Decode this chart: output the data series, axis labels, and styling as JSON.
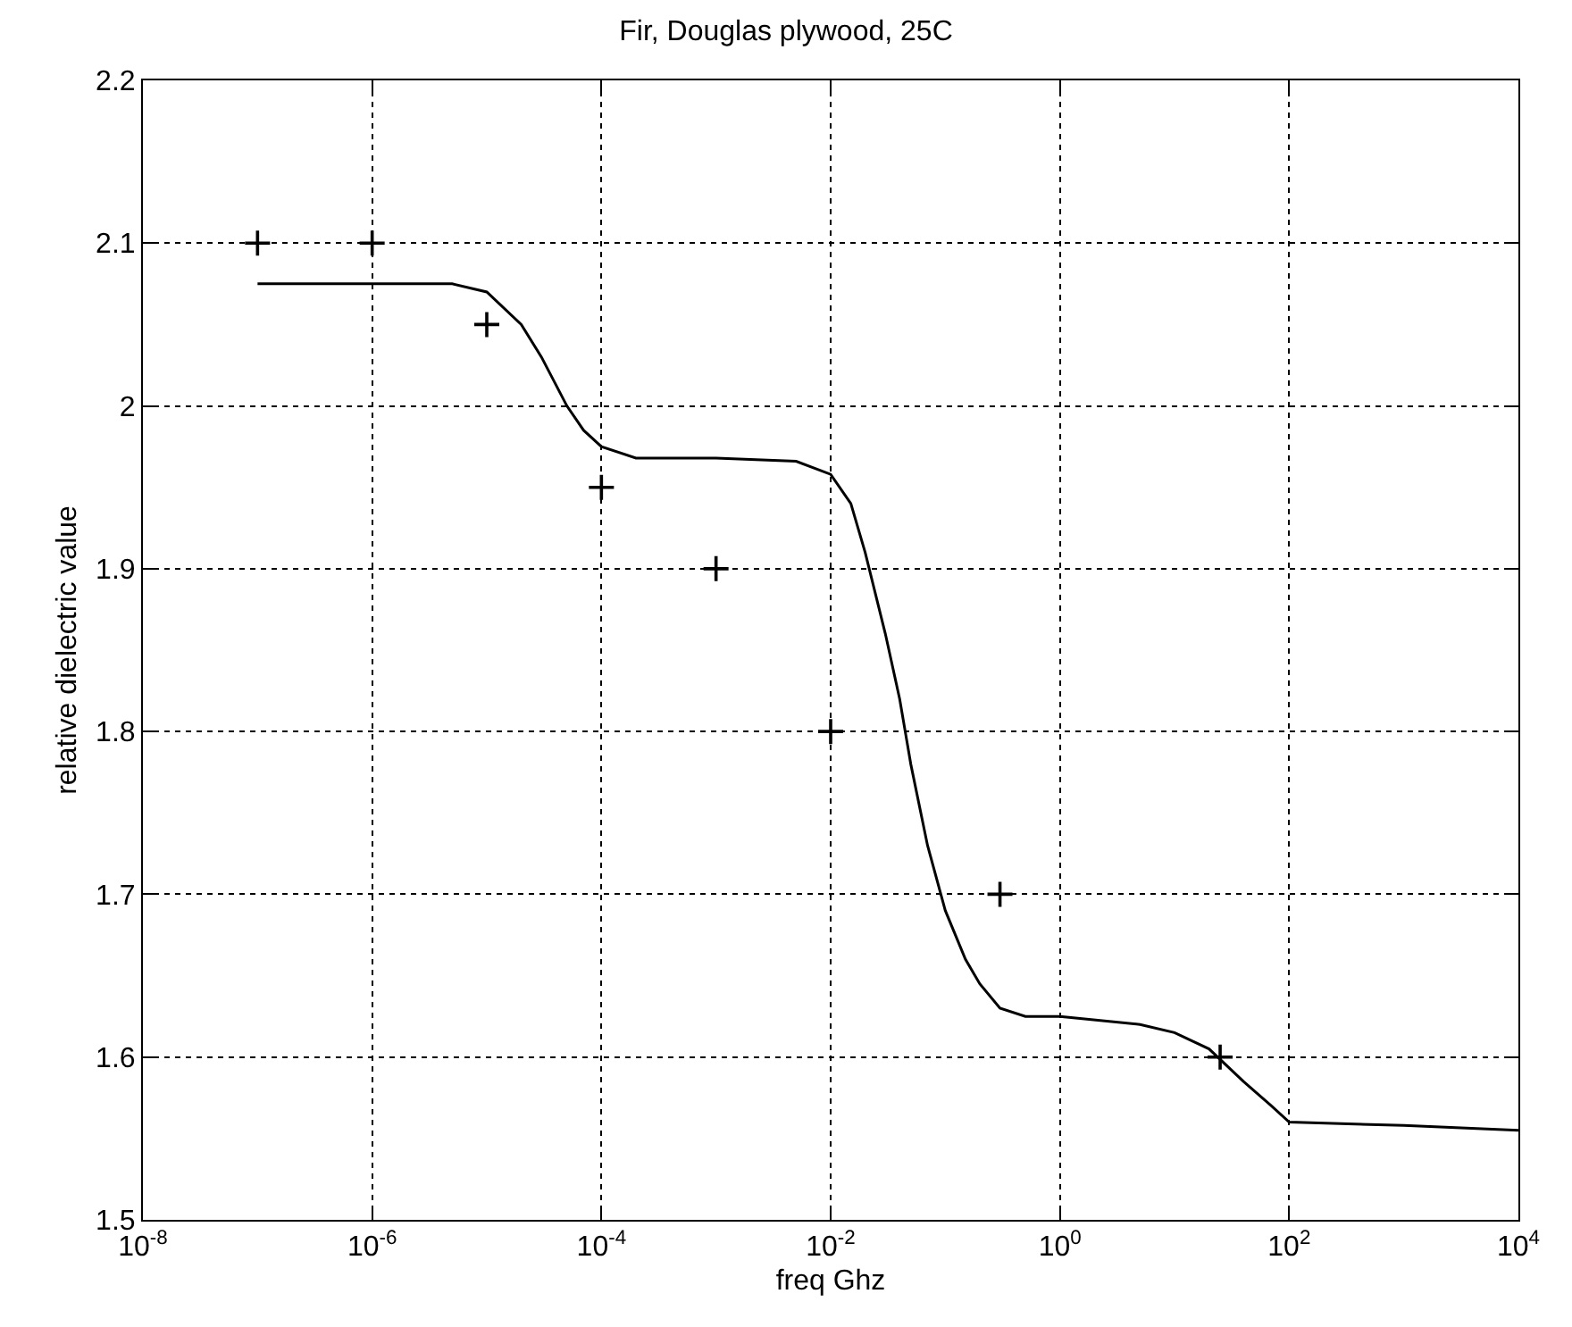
{
  "chart_data": {
    "type": "line",
    "title": "Fir, Douglas plywood, 25C",
    "xlabel": "freq Ghz",
    "ylabel": "relative dielectric value",
    "log": "x",
    "grid": true,
    "xlim": [
      1e-08,
      10000
    ],
    "ylim": [
      1.5,
      2.2
    ],
    "xticks": [
      {
        "value": 1e-08,
        "label": "10$^{-8}$"
      },
      {
        "value": 1e-06,
        "label": "10$^{-6}$"
      },
      {
        "value": 0.0001,
        "label": "10$^{-4}$"
      },
      {
        "value": 0.01,
        "label": "10$^{-2}$"
      },
      {
        "value": 1,
        "label": "10$^{0}$"
      },
      {
        "value": 100,
        "label": "10$^{2}$"
      },
      {
        "value": 10000,
        "label": "10$^{4}$"
      }
    ],
    "yticks": [
      1.5,
      1.6,
      1.7,
      1.8,
      1.9,
      2,
      2.1,
      2.2
    ],
    "series": [
      {
        "color": "#000000",
        "marker": "none",
        "line_style": "solid",
        "x": [
          1e-07,
          1e-06,
          5e-06,
          1e-05,
          2e-05,
          3e-05,
          5e-05,
          7e-05,
          0.0001,
          0.0002,
          0.001,
          0.005,
          0.01,
          0.015,
          0.02,
          0.03,
          0.04,
          0.05,
          0.07,
          0.1,
          0.15,
          0.2,
          0.3,
          0.5,
          1,
          5,
          10,
          20,
          40,
          70,
          100,
          1000,
          10000
        ],
        "values": [
          2.075,
          2.075,
          2.075,
          2.07,
          2.05,
          2.03,
          2.0,
          1.985,
          1.975,
          1.968,
          1.968,
          1.966,
          1.958,
          1.94,
          1.91,
          1.86,
          1.82,
          1.78,
          1.73,
          1.69,
          1.66,
          1.645,
          1.63,
          1.625,
          1.625,
          1.62,
          1.615,
          1.605,
          1.585,
          1.57,
          1.56,
          1.558,
          1.555
        ]
      },
      {
        "type": "scatter",
        "color": "#000000",
        "marker": "cross",
        "x": [
          1e-07,
          1e-06,
          1e-05,
          0.0001,
          0.001,
          0.01,
          0.3,
          25
        ],
        "values": [
          2.1,
          2.1,
          2.05,
          1.95,
          1.9,
          1.8,
          1.7,
          1.6
        ]
      }
    ]
  }
}
